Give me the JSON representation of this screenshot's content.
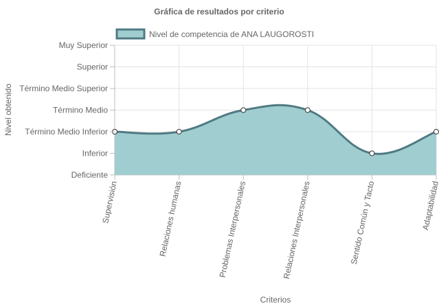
{
  "chart_data": {
    "type": "area",
    "title": "Gráfica de resultados por criterio",
    "xlabel": "Criterios",
    "ylabel": "Nivel obtenido",
    "categories": [
      "Supervisión",
      "Relaciones humanas",
      "Problemas Interpersonales",
      "Relaciones Interpersonales",
      "Sentido Común y Tacto",
      "Adaptabilidad"
    ],
    "y_levels": [
      "Deficiente",
      "Inferior",
      "Término Medio Inferior",
      "Término Medio",
      "Término Medio Superior",
      "Superior",
      "Muy Superior"
    ],
    "ylim": [
      0,
      6
    ],
    "grid": true,
    "legend_position": "top",
    "series": [
      {
        "name": "Nivel de competencia de ANA LAUGOROSTI",
        "values": [
          2,
          2,
          3,
          3,
          1,
          2
        ],
        "fill_color": "#a0cdd0",
        "line_color": "#4f7a82"
      }
    ]
  }
}
